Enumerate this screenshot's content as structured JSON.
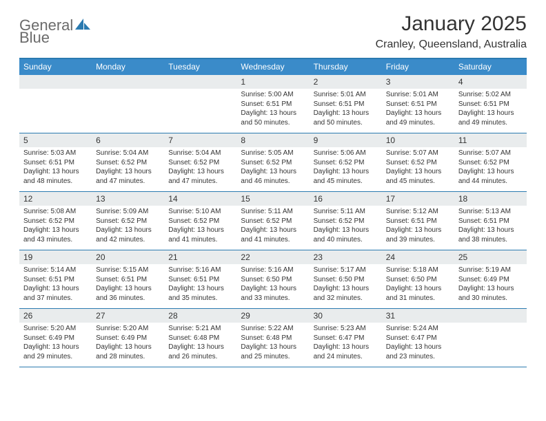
{
  "brand": {
    "text1": "General",
    "text2": "Blue",
    "text1_color": "#6b6b6b",
    "text2_color": "#2a7ab0",
    "shape_color": "#2a7ab0"
  },
  "title": "January 2025",
  "location": "Cranley, Queensland, Australia",
  "colors": {
    "header_bg": "#3a8bc9",
    "border": "#2a7ab0",
    "daynum_bg": "#e9eced",
    "text": "#333333",
    "header_text": "#ffffff"
  },
  "days_of_week": [
    "Sunday",
    "Monday",
    "Tuesday",
    "Wednesday",
    "Thursday",
    "Friday",
    "Saturday"
  ],
  "weeks": [
    [
      {
        "n": "",
        "sunrise": "",
        "sunset": "",
        "daylight": ""
      },
      {
        "n": "",
        "sunrise": "",
        "sunset": "",
        "daylight": ""
      },
      {
        "n": "",
        "sunrise": "",
        "sunset": "",
        "daylight": ""
      },
      {
        "n": "1",
        "sunrise": "Sunrise: 5:00 AM",
        "sunset": "Sunset: 6:51 PM",
        "daylight": "Daylight: 13 hours and 50 minutes."
      },
      {
        "n": "2",
        "sunrise": "Sunrise: 5:01 AM",
        "sunset": "Sunset: 6:51 PM",
        "daylight": "Daylight: 13 hours and 50 minutes."
      },
      {
        "n": "3",
        "sunrise": "Sunrise: 5:01 AM",
        "sunset": "Sunset: 6:51 PM",
        "daylight": "Daylight: 13 hours and 49 minutes."
      },
      {
        "n": "4",
        "sunrise": "Sunrise: 5:02 AM",
        "sunset": "Sunset: 6:51 PM",
        "daylight": "Daylight: 13 hours and 49 minutes."
      }
    ],
    [
      {
        "n": "5",
        "sunrise": "Sunrise: 5:03 AM",
        "sunset": "Sunset: 6:51 PM",
        "daylight": "Daylight: 13 hours and 48 minutes."
      },
      {
        "n": "6",
        "sunrise": "Sunrise: 5:04 AM",
        "sunset": "Sunset: 6:52 PM",
        "daylight": "Daylight: 13 hours and 47 minutes."
      },
      {
        "n": "7",
        "sunrise": "Sunrise: 5:04 AM",
        "sunset": "Sunset: 6:52 PM",
        "daylight": "Daylight: 13 hours and 47 minutes."
      },
      {
        "n": "8",
        "sunrise": "Sunrise: 5:05 AM",
        "sunset": "Sunset: 6:52 PM",
        "daylight": "Daylight: 13 hours and 46 minutes."
      },
      {
        "n": "9",
        "sunrise": "Sunrise: 5:06 AM",
        "sunset": "Sunset: 6:52 PM",
        "daylight": "Daylight: 13 hours and 45 minutes."
      },
      {
        "n": "10",
        "sunrise": "Sunrise: 5:07 AM",
        "sunset": "Sunset: 6:52 PM",
        "daylight": "Daylight: 13 hours and 45 minutes."
      },
      {
        "n": "11",
        "sunrise": "Sunrise: 5:07 AM",
        "sunset": "Sunset: 6:52 PM",
        "daylight": "Daylight: 13 hours and 44 minutes."
      }
    ],
    [
      {
        "n": "12",
        "sunrise": "Sunrise: 5:08 AM",
        "sunset": "Sunset: 6:52 PM",
        "daylight": "Daylight: 13 hours and 43 minutes."
      },
      {
        "n": "13",
        "sunrise": "Sunrise: 5:09 AM",
        "sunset": "Sunset: 6:52 PM",
        "daylight": "Daylight: 13 hours and 42 minutes."
      },
      {
        "n": "14",
        "sunrise": "Sunrise: 5:10 AM",
        "sunset": "Sunset: 6:52 PM",
        "daylight": "Daylight: 13 hours and 41 minutes."
      },
      {
        "n": "15",
        "sunrise": "Sunrise: 5:11 AM",
        "sunset": "Sunset: 6:52 PM",
        "daylight": "Daylight: 13 hours and 41 minutes."
      },
      {
        "n": "16",
        "sunrise": "Sunrise: 5:11 AM",
        "sunset": "Sunset: 6:52 PM",
        "daylight": "Daylight: 13 hours and 40 minutes."
      },
      {
        "n": "17",
        "sunrise": "Sunrise: 5:12 AM",
        "sunset": "Sunset: 6:51 PM",
        "daylight": "Daylight: 13 hours and 39 minutes."
      },
      {
        "n": "18",
        "sunrise": "Sunrise: 5:13 AM",
        "sunset": "Sunset: 6:51 PM",
        "daylight": "Daylight: 13 hours and 38 minutes."
      }
    ],
    [
      {
        "n": "19",
        "sunrise": "Sunrise: 5:14 AM",
        "sunset": "Sunset: 6:51 PM",
        "daylight": "Daylight: 13 hours and 37 minutes."
      },
      {
        "n": "20",
        "sunrise": "Sunrise: 5:15 AM",
        "sunset": "Sunset: 6:51 PM",
        "daylight": "Daylight: 13 hours and 36 minutes."
      },
      {
        "n": "21",
        "sunrise": "Sunrise: 5:16 AM",
        "sunset": "Sunset: 6:51 PM",
        "daylight": "Daylight: 13 hours and 35 minutes."
      },
      {
        "n": "22",
        "sunrise": "Sunrise: 5:16 AM",
        "sunset": "Sunset: 6:50 PM",
        "daylight": "Daylight: 13 hours and 33 minutes."
      },
      {
        "n": "23",
        "sunrise": "Sunrise: 5:17 AM",
        "sunset": "Sunset: 6:50 PM",
        "daylight": "Daylight: 13 hours and 32 minutes."
      },
      {
        "n": "24",
        "sunrise": "Sunrise: 5:18 AM",
        "sunset": "Sunset: 6:50 PM",
        "daylight": "Daylight: 13 hours and 31 minutes."
      },
      {
        "n": "25",
        "sunrise": "Sunrise: 5:19 AM",
        "sunset": "Sunset: 6:49 PM",
        "daylight": "Daylight: 13 hours and 30 minutes."
      }
    ],
    [
      {
        "n": "26",
        "sunrise": "Sunrise: 5:20 AM",
        "sunset": "Sunset: 6:49 PM",
        "daylight": "Daylight: 13 hours and 29 minutes."
      },
      {
        "n": "27",
        "sunrise": "Sunrise: 5:20 AM",
        "sunset": "Sunset: 6:49 PM",
        "daylight": "Daylight: 13 hours and 28 minutes."
      },
      {
        "n": "28",
        "sunrise": "Sunrise: 5:21 AM",
        "sunset": "Sunset: 6:48 PM",
        "daylight": "Daylight: 13 hours and 26 minutes."
      },
      {
        "n": "29",
        "sunrise": "Sunrise: 5:22 AM",
        "sunset": "Sunset: 6:48 PM",
        "daylight": "Daylight: 13 hours and 25 minutes."
      },
      {
        "n": "30",
        "sunrise": "Sunrise: 5:23 AM",
        "sunset": "Sunset: 6:47 PM",
        "daylight": "Daylight: 13 hours and 24 minutes."
      },
      {
        "n": "31",
        "sunrise": "Sunrise: 5:24 AM",
        "sunset": "Sunset: 6:47 PM",
        "daylight": "Daylight: 13 hours and 23 minutes."
      },
      {
        "n": "",
        "sunrise": "",
        "sunset": "",
        "daylight": ""
      }
    ]
  ]
}
